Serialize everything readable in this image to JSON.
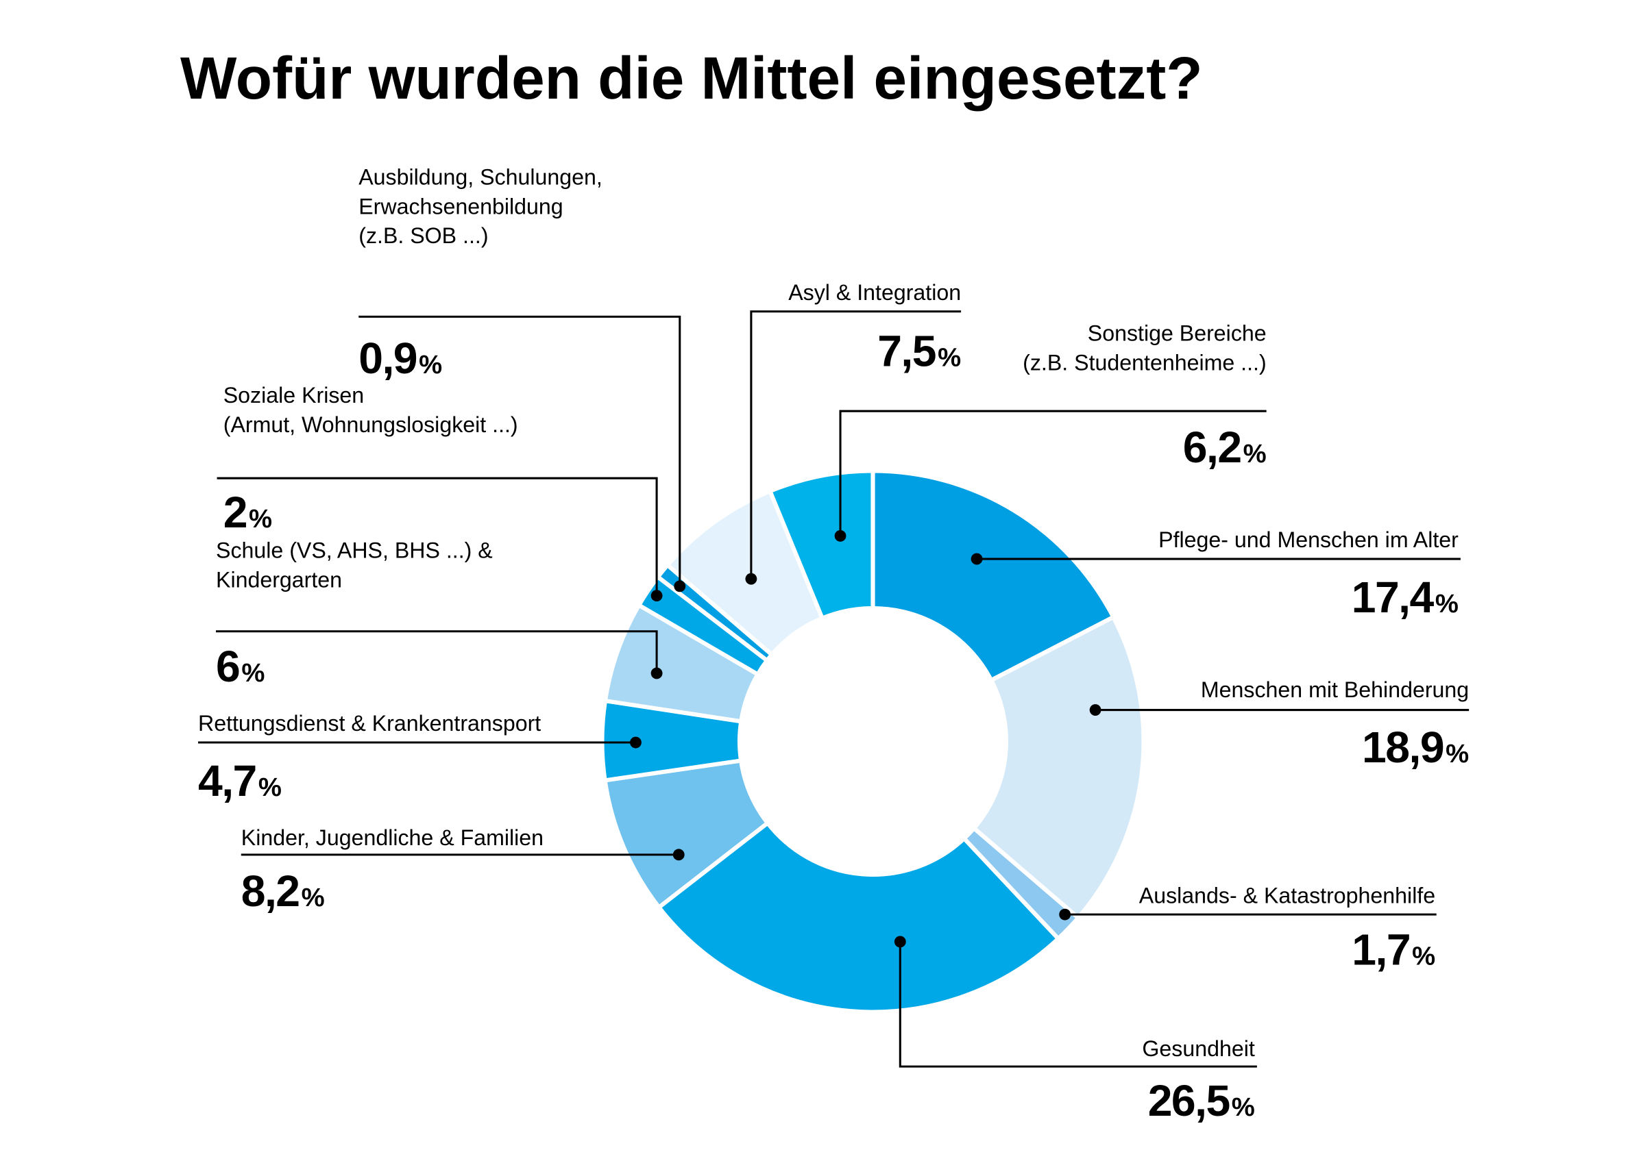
{
  "chart_data": {
    "type": "pie",
    "title": "Wofür wurden die Mittel eingesetzt?",
    "unit": "%",
    "slices": [
      {
        "label": "Pflege- und Menschen im Alter",
        "value": 17.4,
        "display": "17,4",
        "color": "#009fe3"
      },
      {
        "label": "Menschen mit Behinderung",
        "value": 18.9,
        "display": "18,9",
        "color": "#d4e9f8"
      },
      {
        "label": "Auslands- & Katastrophenhilfe",
        "value": 1.7,
        "display": "1,7",
        "color": "#8cc8ef"
      },
      {
        "label": "Gesundheit",
        "value": 26.5,
        "display": "26,5",
        "color": "#00a8e7"
      },
      {
        "label": "Kinder, Jugendliche & Familien",
        "value": 8.2,
        "display": "8,2",
        "color": "#6fc1ee"
      },
      {
        "label": "Rettungsdienst & Krankentransport",
        "value": 4.7,
        "display": "4,7",
        "color": "#00a8e7"
      },
      {
        "label": "Schule (VS, AHS, BHS ...) & Kindergarten",
        "lines": [
          "Schule (VS, AHS, BHS ...) &",
          "Kindergarten"
        ],
        "value": 6,
        "display": "6",
        "color": "#a9d8f5"
      },
      {
        "label": "Soziale Krisen (Armut, Wohnungslosigkeit ...)",
        "lines": [
          "Soziale Krisen",
          "(Armut, Wohnungslosigkeit ...)"
        ],
        "value": 2,
        "display": "2",
        "color": "#00a8e7"
      },
      {
        "label": "Ausbildung, Schulungen, Erwachsenenbildung (z.B. SOB ...)",
        "lines": [
          "Ausbildung, Schulungen,",
          "Erwachsenenbildung",
          "(z.B. SOB ...)"
        ],
        "value": 0.9,
        "display": "0,9",
        "color": "#009fe3"
      },
      {
        "label": "Asyl & Integration",
        "value": 7.5,
        "display": "7,5",
        "color": "#e3f2fc"
      },
      {
        "label": "Sonstige Bereiche (z.B. Studentenheime ...)",
        "lines": [
          "Sonstige Bereiche",
          "(z.B. Studentenheime ...)"
        ],
        "value": 6.2,
        "display": "6,2",
        "color": "#00b2ea"
      }
    ]
  }
}
